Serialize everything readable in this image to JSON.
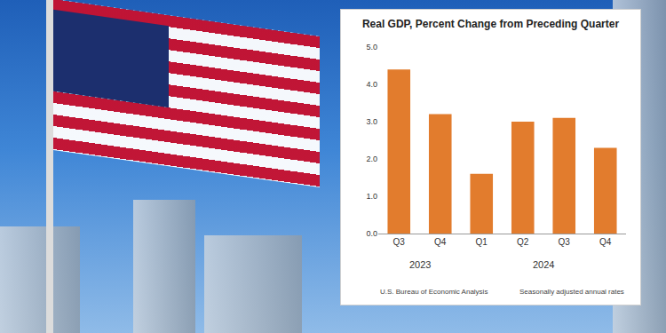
{
  "chart_data": {
    "type": "bar",
    "title": "Real GDP, Percent Change from Preceding Quarter",
    "categories": [
      "Q3",
      "Q4",
      "Q1",
      "Q2",
      "Q3",
      "Q4"
    ],
    "years": [
      "2023",
      "2023",
      "2024",
      "2024",
      "2024",
      "2024"
    ],
    "values": [
      4.4,
      3.2,
      1.6,
      3.0,
      3.1,
      2.3
    ],
    "color": "#e27c2d",
    "ylim": [
      0,
      5
    ],
    "yticks": [
      {
        "value": 0,
        "label": "0.0"
      },
      {
        "value": 1,
        "label": "1.0"
      },
      {
        "value": 2,
        "label": "2.0"
      },
      {
        "value": 3,
        "label": "3.0"
      },
      {
        "value": 4,
        "label": "4.0"
      },
      {
        "value": 5,
        "label": "5.0"
      }
    ],
    "grid": false,
    "source": "U.S. Bureau of Economic Analysis",
    "note": "Seasonally adjusted annual rates"
  }
}
